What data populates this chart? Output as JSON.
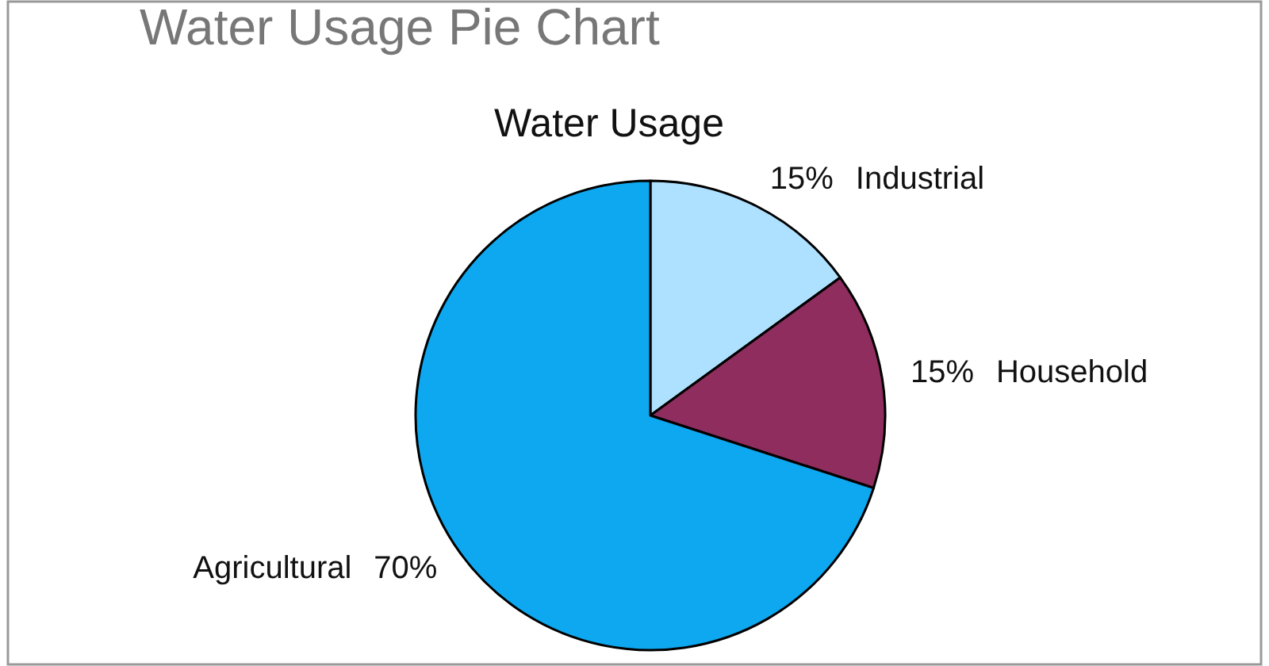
{
  "chart_data": {
    "type": "pie",
    "title": "Water Usage Pie Chart",
    "subtitle": "Water Usage",
    "categories": [
      "Industrial",
      "Household",
      "Agricultural"
    ],
    "values": [
      15,
      15,
      70
    ],
    "colors": [
      "#aee0ff",
      "#8e2d5e",
      "#0ea8f0"
    ],
    "value_labels": [
      "15%",
      "15%",
      "70%"
    ]
  }
}
